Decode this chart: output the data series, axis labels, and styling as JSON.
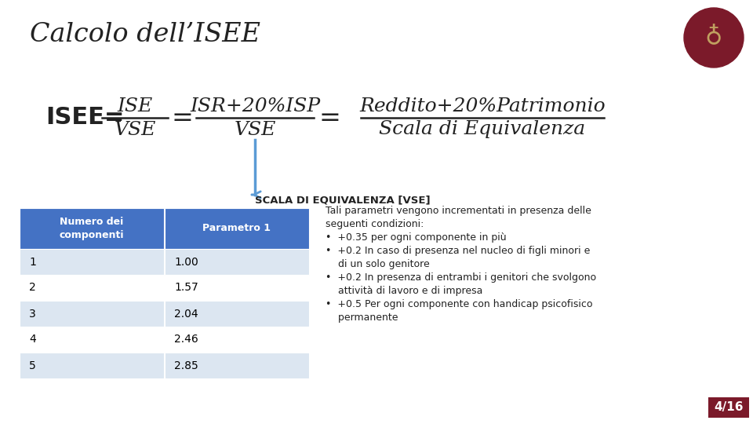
{
  "title": "Calcolo dell’ISEE",
  "background_color": "#ffffff",
  "scala_label": "SCALA DI EQUIVALENZA [VSE]",
  "table_headers": [
    "Numero dei\ncomponenti",
    "Parametro 1"
  ],
  "table_rows": [
    [
      "1",
      "1.00"
    ],
    [
      "2",
      "1.57"
    ],
    [
      "3",
      "2.04"
    ],
    [
      "4",
      "2.46"
    ],
    [
      "5",
      "2.85"
    ]
  ],
  "header_bg": "#4472C4",
  "header_fg": "#ffffff",
  "row_bg_odd": "#dce6f1",
  "row_bg_even": "#ffffff",
  "table_text_color": "#000000",
  "bullet_lines": [
    "Tali parametri vengono incrementati in presenza delle",
    "seguenti condizioni:",
    "•  +0.35 per ogni componente in più",
    "•  +0.2 In caso di presenza nel nucleo di figli minori e",
    "    di un solo genitore",
    "•  +0.2 In presenza di entrambi i genitori che svolgono",
    "    attività di lavoro e di impresa",
    "•  +0.5 Per ogni componente con handicap psicofisico",
    "    permanente"
  ],
  "page_label": "4/16",
  "page_bg": "#7B1A2A",
  "page_fg": "#ffffff",
  "arrow_color": "#5B9BD5",
  "formula_color": "#222222"
}
